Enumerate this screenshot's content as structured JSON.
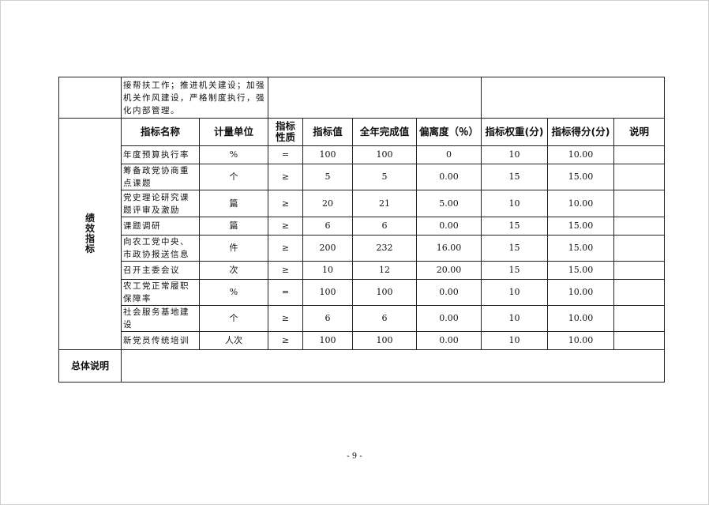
{
  "top_row": {
    "text": "接帮扶工作；推进机关建设；加强机关作风建设，严格制度执行，强化内部管理。"
  },
  "section_label": "绩效指标",
  "headers": [
    "指标名称",
    "计量单位",
    "指标性质",
    "指标值",
    "全年完成值",
    "偏离度（％）",
    "指标权重(分)",
    "指标得分(分)",
    "说明"
  ],
  "rows": [
    {
      "name": "年度预算执行率",
      "unit": "%",
      "nature": "=",
      "target": "100",
      "actual": "100",
      "deviation": "0",
      "weight": "10",
      "score": "10.00",
      "note": ""
    },
    {
      "name": "筹备政党协商重点课题",
      "unit": "个",
      "nature": "≥",
      "target": "5",
      "actual": "5",
      "deviation": "0.00",
      "weight": "15",
      "score": "15.00",
      "note": ""
    },
    {
      "name": "党史理论研究课题评审及激励",
      "unit": "篇",
      "nature": "≥",
      "target": "20",
      "actual": "21",
      "deviation": "5.00",
      "weight": "10",
      "score": "10.00",
      "note": ""
    },
    {
      "name": "课题调研",
      "unit": "篇",
      "nature": "≥",
      "target": "6",
      "actual": "6",
      "deviation": "0.00",
      "weight": "15",
      "score": "15.00",
      "note": ""
    },
    {
      "name": "向农工党中央、市政协报送信息",
      "unit": "件",
      "nature": "≥",
      "target": "200",
      "actual": "232",
      "deviation": "16.00",
      "weight": "15",
      "score": "15.00",
      "note": ""
    },
    {
      "name": "召开主委会议",
      "unit": "次",
      "nature": "≥",
      "target": "10",
      "actual": "12",
      "deviation": "20.00",
      "weight": "15",
      "score": "15.00",
      "note": ""
    },
    {
      "name": "农工党正常履职保障率",
      "unit": "%",
      "nature": "=",
      "target": "100",
      "actual": "100",
      "deviation": "0.00",
      "weight": "10",
      "score": "10.00",
      "note": ""
    },
    {
      "name": "社会服务基地建设",
      "unit": "个",
      "nature": "≥",
      "target": "6",
      "actual": "6",
      "deviation": "0.00",
      "weight": "10",
      "score": "10.00",
      "note": ""
    },
    {
      "name": "新党员传统培训",
      "unit": "人次",
      "nature": "≥",
      "target": "100",
      "actual": "100",
      "deviation": "0.00",
      "weight": "10",
      "score": "10.00",
      "note": ""
    }
  ],
  "summary_label": "总体说明",
  "summary_text": "",
  "page_number": "- 9 -"
}
